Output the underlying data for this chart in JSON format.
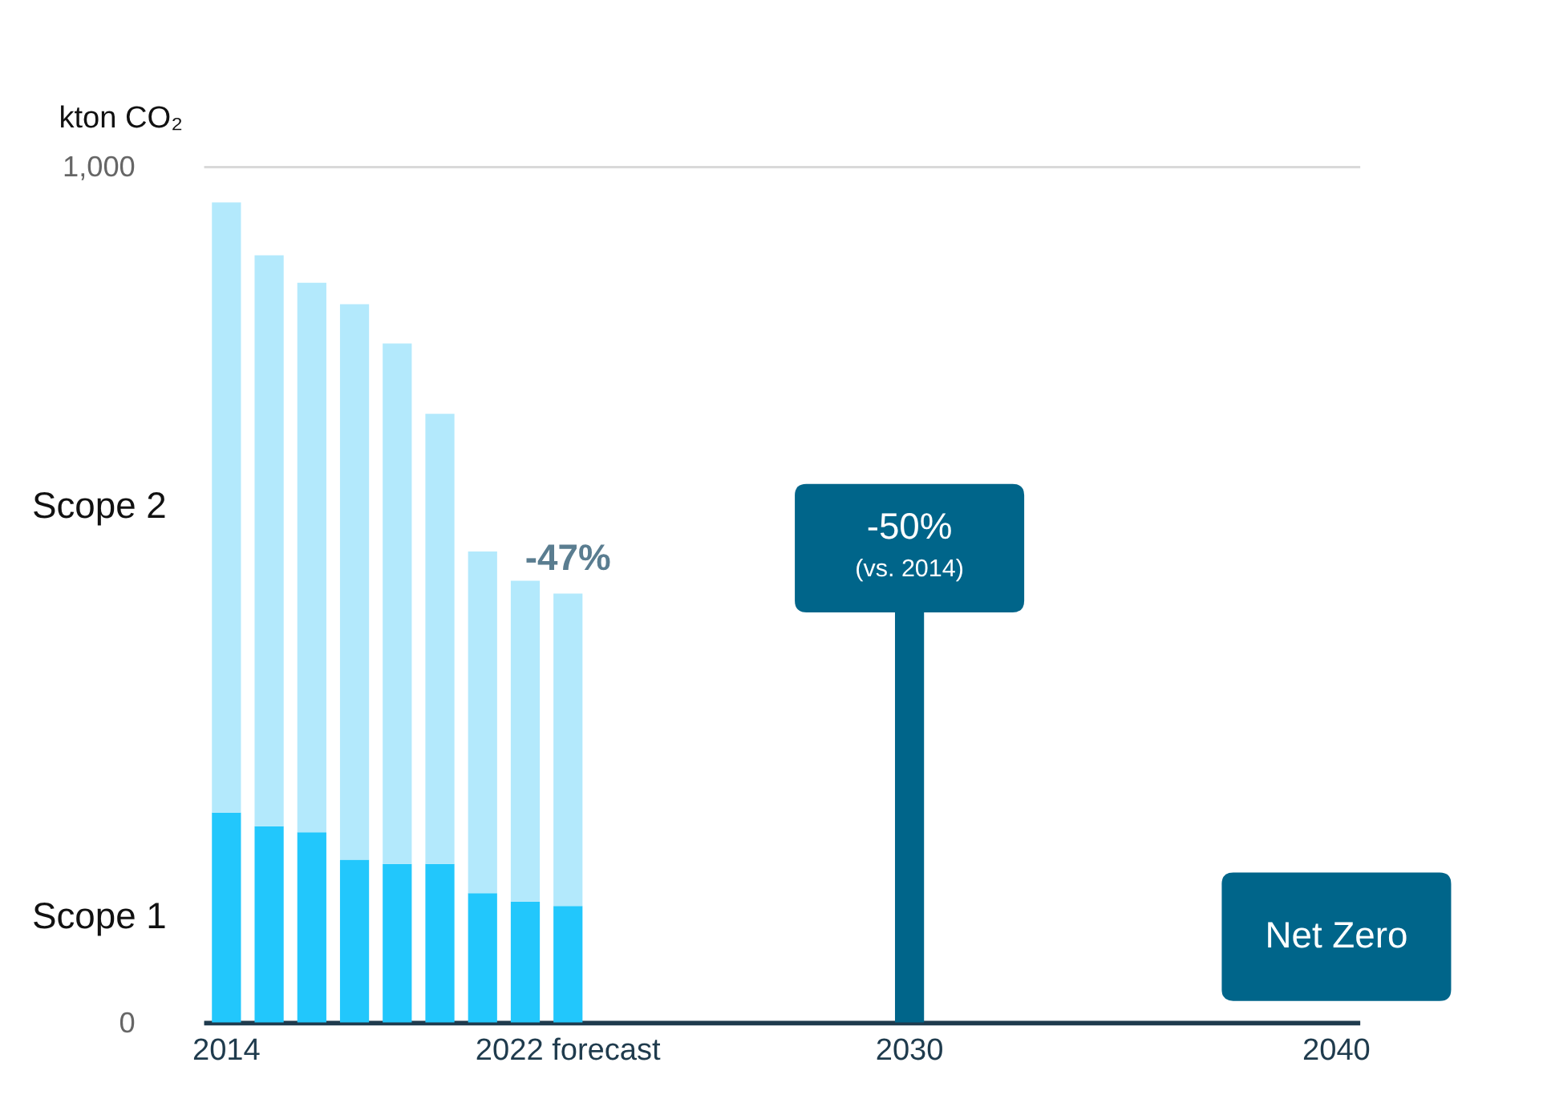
{
  "chart_data": {
    "type": "bar",
    "stacked": true,
    "ylabel": "kton CO₂",
    "categories": [
      "2014",
      null,
      null,
      null,
      null,
      null,
      null,
      null,
      "2022 forecast",
      null,
      null,
      null,
      null,
      null,
      null,
      null,
      "2030",
      null,
      null,
      null,
      null,
      null,
      null,
      null,
      null,
      null,
      "2040"
    ],
    "series": [
      {
        "name": "Scope 1",
        "color": "#22c7fc",
        "values": [
          245,
          229,
          222,
          190,
          185,
          185,
          151,
          141,
          136,
          null,
          null,
          null,
          null,
          null,
          null,
          null,
          null,
          null,
          null,
          null,
          null,
          null,
          null,
          null,
          null,
          null,
          null
        ]
      },
      {
        "name": "Scope 2",
        "color": "#b3e9fc",
        "values": [
          713,
          667,
          642,
          649,
          608,
          526,
          399,
          375,
          365,
          null,
          null,
          null,
          null,
          null,
          null,
          null,
          null,
          null,
          null,
          null,
          null,
          null,
          null,
          null,
          null,
          null,
          null
        ]
      },
      {
        "color": "#00658a",
        "values": [
          null,
          null,
          null,
          null,
          null,
          null,
          null,
          null,
          null,
          null,
          null,
          null,
          null,
          null,
          null,
          null,
          479,
          null,
          null,
          null,
          null,
          null,
          null,
          null,
          null,
          null,
          null
        ]
      }
    ],
    "ylim": [
      0,
      1000
    ],
    "yticks": [
      0,
      {
        "value": 1000,
        "label": "1,000"
      }
    ],
    "grid": "y",
    "annotations": [
      "-47%",
      "-50%",
      "(vs. 2014)",
      "Net Zero"
    ]
  }
}
